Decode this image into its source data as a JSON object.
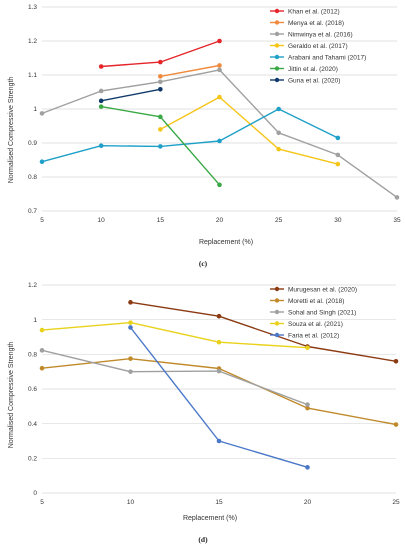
{
  "chart_data": [
    {
      "type": "line",
      "panel_label": "(c)",
      "xlabel": "Replacement (%)",
      "ylabel": "Normalised Compressive Strength",
      "xlim": [
        5,
        35
      ],
      "ylim": [
        0.7,
        1.3
      ],
      "xticks": [
        5,
        10,
        15,
        20,
        25,
        30,
        35
      ],
      "yticks": [
        0.7,
        0.8,
        0.9,
        1.0,
        1.1,
        1.2,
        1.3
      ],
      "ytick_labels": [
        "0.7",
        "0.8",
        "0.9",
        "1",
        "1.1",
        "1.2",
        "1.3"
      ],
      "grid": "horizontal",
      "legend_position": "top-right",
      "series": [
        {
          "name": "Khan et al. (2012)",
          "color": "#e5252a",
          "x": [
            10,
            15,
            20
          ],
          "y": [
            1.125,
            1.138,
            1.2
          ]
        },
        {
          "name": "Menya et al. (2018)",
          "color": "#f08a3c",
          "x": [
            15,
            20
          ],
          "y": [
            1.096,
            1.128
          ]
        },
        {
          "name": "Nimwinya et al. (2016)",
          "color": "#a0a0a0",
          "x": [
            5,
            10,
            15,
            20,
            25,
            30,
            35
          ],
          "y": [
            0.987,
            1.053,
            1.08,
            1.115,
            0.93,
            0.865,
            0.74
          ]
        },
        {
          "name": "Geraldo et al. (2017)",
          "color": "#f5c518",
          "x": [
            15,
            20,
            25,
            30
          ],
          "y": [
            0.94,
            1.035,
            0.882,
            0.838
          ]
        },
        {
          "name": "Arabani and Tahami (2017)",
          "color": "#1fa0c8",
          "x": [
            5,
            10,
            15,
            20,
            25,
            30
          ],
          "y": [
            0.845,
            0.892,
            0.89,
            0.906,
            1.0,
            0.915
          ]
        },
        {
          "name": "Jittin et al. (2020)",
          "color": "#3aa845",
          "x": [
            10,
            15,
            20
          ],
          "y": [
            1.007,
            0.977,
            0.777
          ]
        },
        {
          "name": "Guna et al. (2020)",
          "color": "#103a6b",
          "x": [
            10,
            15
          ],
          "y": [
            1.024,
            1.058
          ]
        }
      ]
    },
    {
      "type": "line",
      "panel_label": "(d)",
      "xlabel": "Replacement (%)",
      "ylabel": "Normalised Compressive Strength",
      "xlim": [
        5,
        25
      ],
      "ylim": [
        0,
        1.2
      ],
      "xticks": [
        5,
        10,
        15,
        20,
        25
      ],
      "yticks": [
        0,
        0.2,
        0.4,
        0.6,
        0.8,
        1.0,
        1.2
      ],
      "ytick_labels": [
        "0",
        "0.2",
        "0.4",
        "0.6",
        "0.8",
        "1",
        "1.2"
      ],
      "grid": "horizontal",
      "legend_position": "top-right",
      "series": [
        {
          "name": "Murugesan et al. (2020)",
          "color": "#8b3a12",
          "x": [
            10,
            15,
            20,
            25
          ],
          "y": [
            1.1,
            1.02,
            0.845,
            0.76
          ]
        },
        {
          "name": "Moretti et al. (2018)",
          "color": "#c08a2a",
          "x": [
            5,
            10,
            15,
            20,
            25
          ],
          "y": [
            0.72,
            0.775,
            0.718,
            0.49,
            0.395
          ]
        },
        {
          "name": "Sohal and Singh (2021)",
          "color": "#a0a0a0",
          "x": [
            5,
            10,
            15,
            20
          ],
          "y": [
            0.823,
            0.7,
            0.703,
            0.51
          ]
        },
        {
          "name": "Souza et al. (2021)",
          "color": "#e8d21a",
          "x": [
            5,
            10,
            15,
            20
          ],
          "y": [
            0.94,
            0.983,
            0.87,
            0.838
          ]
        },
        {
          "name": "Faria et al. (2012)",
          "color": "#4a78c8",
          "x": [
            10,
            15,
            20
          ],
          "y": [
            0.955,
            0.3,
            0.148
          ]
        }
      ]
    }
  ]
}
